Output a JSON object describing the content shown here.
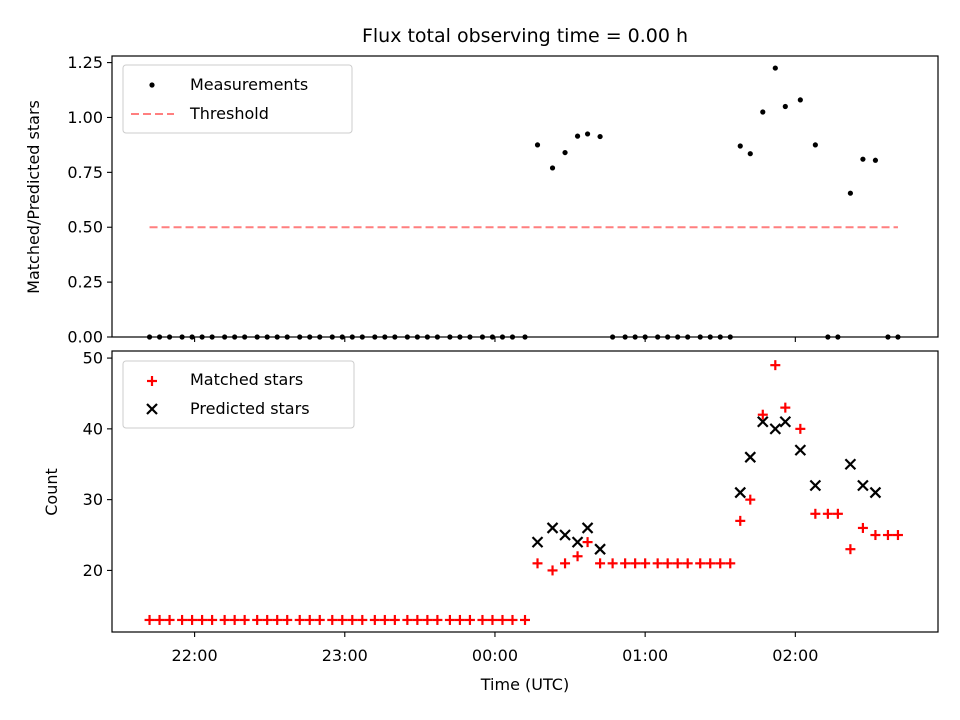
{
  "chart_data": [
    {
      "type": "scatter",
      "title": "Flux total observing time = 0.00 h",
      "ylabel": "Matched/Predicted stars",
      "xlabel": "",
      "x_unit": "UTC time",
      "xlim": [
        "21:27",
        "02:57"
      ],
      "ylim": [
        0,
        1.28
      ],
      "yticks": [
        0.0,
        0.25,
        0.5,
        0.75,
        1.0,
        1.25
      ],
      "ytick_labels": [
        "0.00",
        "0.25",
        "0.50",
        "0.75",
        "1.00",
        "1.25"
      ],
      "xticks": [
        "22:00",
        "23:00",
        "00:00",
        "01:00",
        "02:00"
      ],
      "legend": {
        "placement": "top-left",
        "entries": [
          "Measurements",
          "Threshold"
        ]
      },
      "series": [
        {
          "name": "Measurements",
          "marker": "dot",
          "color": "#000000",
          "points": [
            [
              "21:42",
              0
            ],
            [
              "21:46",
              0
            ],
            [
              "21:50",
              0
            ],
            [
              "21:55",
              0
            ],
            [
              "21:59",
              0
            ],
            [
              "22:03",
              0
            ],
            [
              "22:07",
              0
            ],
            [
              "22:12",
              0
            ],
            [
              "22:16",
              0
            ],
            [
              "22:20",
              0
            ],
            [
              "22:25",
              0
            ],
            [
              "22:29",
              0
            ],
            [
              "22:33",
              0
            ],
            [
              "22:37",
              0
            ],
            [
              "22:42",
              0
            ],
            [
              "22:46",
              0
            ],
            [
              "22:50",
              0
            ],
            [
              "22:55",
              0
            ],
            [
              "22:59",
              0
            ],
            [
              "23:03",
              0
            ],
            [
              "23:07",
              0
            ],
            [
              "23:12",
              0
            ],
            [
              "23:16",
              0
            ],
            [
              "23:20",
              0
            ],
            [
              "23:25",
              0
            ],
            [
              "23:29",
              0
            ],
            [
              "23:33",
              0
            ],
            [
              "23:37",
              0
            ],
            [
              "23:42",
              0
            ],
            [
              "23:46",
              0
            ],
            [
              "23:50",
              0
            ],
            [
              "23:55",
              0
            ],
            [
              "23:59",
              0
            ],
            [
              "00:03",
              0
            ],
            [
              "00:07",
              0
            ],
            [
              "00:12",
              0
            ],
            [
              "00:17",
              0.875
            ],
            [
              "00:23",
              0.77
            ],
            [
              "00:28",
              0.84
            ],
            [
              "00:33",
              0.915
            ],
            [
              "00:37",
              0.925
            ],
            [
              "00:42",
              0.913
            ],
            [
              "00:47",
              0
            ],
            [
              "00:52",
              0
            ],
            [
              "00:56",
              0
            ],
            [
              "01:00",
              0
            ],
            [
              "01:05",
              0
            ],
            [
              "01:09",
              0
            ],
            [
              "01:13",
              0
            ],
            [
              "01:17",
              0
            ],
            [
              "01:22",
              0
            ],
            [
              "01:26",
              0
            ],
            [
              "01:30",
              0
            ],
            [
              "01:34",
              0
            ],
            [
              "01:38",
              0.87
            ],
            [
              "01:42",
              0.835
            ],
            [
              "01:47",
              1.025
            ],
            [
              "01:52",
              1.225
            ],
            [
              "01:56",
              1.05
            ],
            [
              "02:02",
              1.08
            ],
            [
              "02:08",
              0.875
            ],
            [
              "02:13",
              0
            ],
            [
              "02:17",
              0
            ],
            [
              "02:22",
              0.655
            ],
            [
              "02:27",
              0.81
            ],
            [
              "02:32",
              0.805
            ],
            [
              "02:37",
              0
            ],
            [
              "02:41",
              0
            ]
          ]
        },
        {
          "name": "Threshold",
          "style": "dashed",
          "color": "#ff7f7f",
          "x": [
            "21:42",
            "02:41"
          ],
          "y": [
            0.5,
            0.5
          ]
        }
      ]
    },
    {
      "type": "scatter",
      "title": "",
      "ylabel": "Count",
      "xlabel": "Time (UTC)",
      "x_unit": "UTC time",
      "xlim": [
        "21:27",
        "02:57"
      ],
      "ylim": [
        11.3,
        51
      ],
      "yticks": [
        20,
        30,
        40,
        50
      ],
      "ytick_labels": [
        "20",
        "30",
        "40",
        "50"
      ],
      "xticks": [
        "22:00",
        "23:00",
        "00:00",
        "01:00",
        "02:00"
      ],
      "legend": {
        "placement": "top-left",
        "entries": [
          "Matched stars",
          "Predicted stars"
        ]
      },
      "series": [
        {
          "name": "Matched stars",
          "marker": "plus",
          "color": "#ff0000",
          "points": [
            [
              "21:42",
              13
            ],
            [
              "21:46",
              13
            ],
            [
              "21:50",
              13
            ],
            [
              "21:55",
              13
            ],
            [
              "21:59",
              13
            ],
            [
              "22:03",
              13
            ],
            [
              "22:07",
              13
            ],
            [
              "22:12",
              13
            ],
            [
              "22:16",
              13
            ],
            [
              "22:20",
              13
            ],
            [
              "22:25",
              13
            ],
            [
              "22:29",
              13
            ],
            [
              "22:33",
              13
            ],
            [
              "22:37",
              13
            ],
            [
              "22:42",
              13
            ],
            [
              "22:46",
              13
            ],
            [
              "22:50",
              13
            ],
            [
              "22:55",
              13
            ],
            [
              "22:59",
              13
            ],
            [
              "23:03",
              13
            ],
            [
              "23:07",
              13
            ],
            [
              "23:12",
              13
            ],
            [
              "23:16",
              13
            ],
            [
              "23:20",
              13
            ],
            [
              "23:25",
              13
            ],
            [
              "23:29",
              13
            ],
            [
              "23:33",
              13
            ],
            [
              "23:37",
              13
            ],
            [
              "23:42",
              13
            ],
            [
              "23:46",
              13
            ],
            [
              "23:50",
              13
            ],
            [
              "23:55",
              13
            ],
            [
              "23:59",
              13
            ],
            [
              "00:03",
              13
            ],
            [
              "00:07",
              13
            ],
            [
              "00:12",
              13
            ],
            [
              "00:17",
              21
            ],
            [
              "00:23",
              20
            ],
            [
              "00:28",
              21
            ],
            [
              "00:33",
              22
            ],
            [
              "00:37",
              24
            ],
            [
              "00:42",
              21
            ],
            [
              "00:47",
              21
            ],
            [
              "00:52",
              21
            ],
            [
              "00:56",
              21
            ],
            [
              "01:00",
              21
            ],
            [
              "01:05",
              21
            ],
            [
              "01:09",
              21
            ],
            [
              "01:13",
              21
            ],
            [
              "01:17",
              21
            ],
            [
              "01:22",
              21
            ],
            [
              "01:26",
              21
            ],
            [
              "01:30",
              21
            ],
            [
              "01:34",
              21
            ],
            [
              "01:38",
              27
            ],
            [
              "01:42",
              30
            ],
            [
              "01:47",
              42
            ],
            [
              "01:52",
              49
            ],
            [
              "01:56",
              43
            ],
            [
              "02:02",
              40
            ],
            [
              "02:08",
              28
            ],
            [
              "02:13",
              28
            ],
            [
              "02:17",
              28
            ],
            [
              "02:22",
              23
            ],
            [
              "02:27",
              26
            ],
            [
              "02:32",
              25
            ],
            [
              "02:37",
              25
            ],
            [
              "02:41",
              25
            ]
          ]
        },
        {
          "name": "Predicted stars",
          "marker": "x",
          "color": "#000000",
          "points": [
            [
              "00:17",
              24
            ],
            [
              "00:23",
              26
            ],
            [
              "00:28",
              25
            ],
            [
              "00:33",
              24
            ],
            [
              "00:37",
              26
            ],
            [
              "00:42",
              23
            ],
            [
              "01:38",
              31
            ],
            [
              "01:42",
              36
            ],
            [
              "01:47",
              41
            ],
            [
              "01:52",
              40
            ],
            [
              "01:56",
              41
            ],
            [
              "02:02",
              37
            ],
            [
              "02:08",
              32
            ],
            [
              "02:22",
              35
            ],
            [
              "02:27",
              32
            ],
            [
              "02:32",
              31
            ]
          ]
        }
      ]
    }
  ]
}
